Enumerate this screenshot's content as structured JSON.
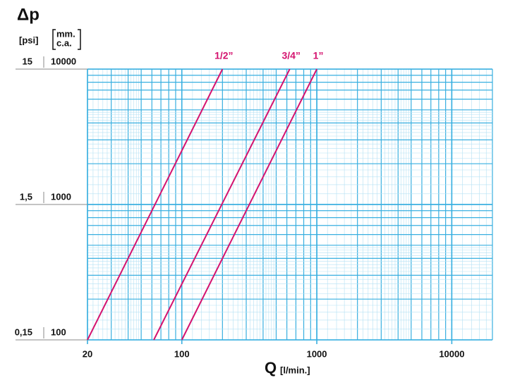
{
  "chart_data": {
    "type": "line",
    "title": "Δp",
    "y_label": [
      "mm.",
      "c.a."
    ],
    "y2_label": "[psi]",
    "x_label": "Q",
    "x_unit": "[l/min.]",
    "log_x": true,
    "log_y": true,
    "grid": true,
    "xlim": [
      20,
      20000
    ],
    "ylim": [
      100,
      10000
    ],
    "y2lim": [
      0.15,
      15
    ],
    "xticks": [
      20,
      100,
      1000,
      10000
    ],
    "yticks": [
      100,
      1000,
      10000
    ],
    "y2ticks": [
      {
        "value": 0.15,
        "label": "0,15"
      },
      {
        "value": 1.5,
        "label": "1,5"
      },
      15
    ],
    "grid_color": "#38afe0",
    "minor_grid_color": "#b5e1f4",
    "series": [
      {
        "name": "1/2”",
        "color": "#d4136f",
        "x": [
          20,
          200
        ],
        "values": [
          100,
          10000
        ]
      },
      {
        "name": "3/4”",
        "color": "#d4136f",
        "x": [
          62,
          630
        ],
        "values": [
          100,
          10000
        ]
      },
      {
        "name": "1”",
        "color": "#d4136f",
        "x": [
          100,
          1000
        ],
        "values": [
          100,
          10000
        ]
      }
    ]
  }
}
